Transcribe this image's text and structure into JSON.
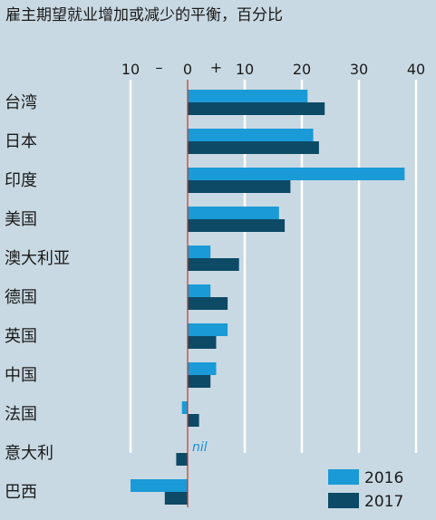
{
  "chart_data": {
    "type": "bar",
    "orientation": "horizontal",
    "title": "雇主期望就业增加或减少的平衡，百分比",
    "xlim": [
      -10,
      40
    ],
    "ticks": [
      -10,
      0,
      10,
      20,
      30,
      40
    ],
    "tick_labels": [
      "10",
      "0",
      "10",
      "20",
      "30",
      "40"
    ],
    "sign_labels": [
      "–",
      "+"
    ],
    "categories": [
      "台湾",
      "日本",
      "印度",
      "美国",
      "澳大利亚",
      "德国",
      "英国",
      "中国",
      "法国",
      "意大利",
      "巴西"
    ],
    "series": [
      {
        "name": "2016",
        "color": "#1a9ad6",
        "values": [
          21,
          22,
          38,
          16,
          4,
          4,
          7,
          5,
          -1,
          0,
          -10
        ]
      },
      {
        "name": "2017",
        "color": "#0d4a66",
        "values": [
          24,
          23,
          18,
          17,
          9,
          7,
          5,
          4,
          2,
          -2,
          -4
        ]
      }
    ],
    "annotations": [
      {
        "category": "意大利",
        "series": "2016",
        "text": "nil"
      }
    ],
    "legend_position": "bottom-right",
    "grid": true,
    "zero_line_color": "#c0392b"
  }
}
